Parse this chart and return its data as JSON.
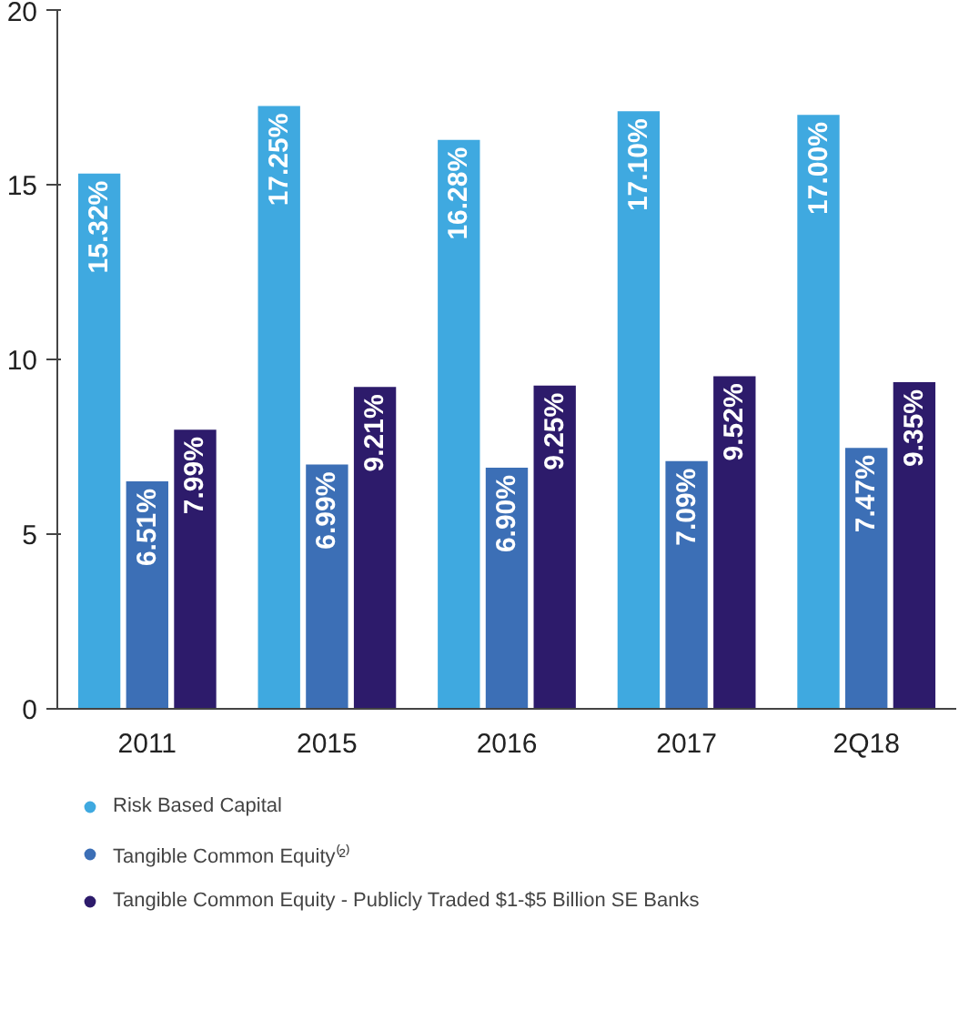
{
  "chart_data": {
    "type": "bar",
    "categories": [
      "2011",
      "2015",
      "2016",
      "2017",
      "2Q18"
    ],
    "series": [
      {
        "name": "Risk Based Capital",
        "color": "#3fa9e0",
        "values": [
          15.32,
          17.25,
          16.28,
          17.1,
          17.0
        ],
        "value_labels": [
          "15.32%",
          "17.25%",
          "16.28%",
          "17.10%",
          "17.00%"
        ]
      },
      {
        "name": "Tangible Common Equity⁽²⁾",
        "color": "#3c6fb6",
        "values": [
          6.51,
          6.99,
          6.9,
          7.09,
          7.47
        ],
        "value_labels": [
          "6.51%",
          "6.99%",
          "6.90%",
          "7.09%",
          "7.47%"
        ]
      },
      {
        "name": "Tangible Common Equity - Publicly Traded $1-$5 Billion SE Banks",
        "color": "#2d1b6b",
        "values": [
          7.99,
          9.21,
          9.25,
          9.52,
          9.35
        ],
        "value_labels": [
          "7.99%",
          "9.21%",
          "9.25%",
          "9.52%",
          "9.35%"
        ]
      }
    ],
    "ylim": [
      0,
      20
    ],
    "yticks": [
      0,
      5,
      10,
      15,
      20
    ],
    "grid": false,
    "legend": "bottom"
  }
}
